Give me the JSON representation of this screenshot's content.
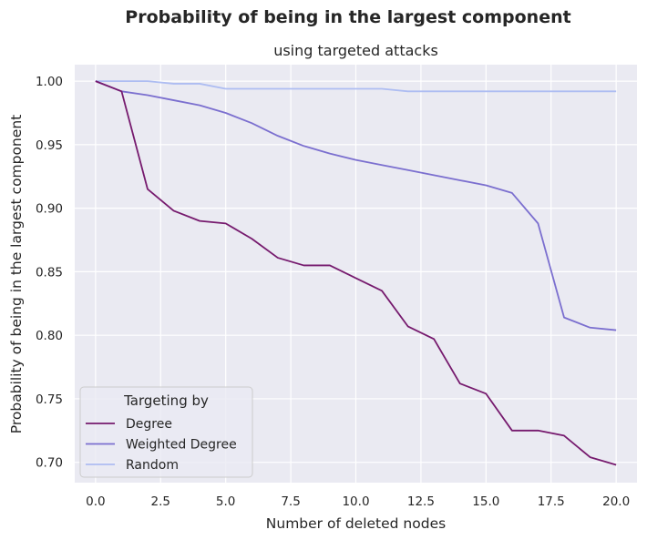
{
  "chart_data": {
    "type": "line",
    "title": "Probability of being in the largest component",
    "subtitle": "using targeted attacks",
    "xlabel": "Number of deleted nodes",
    "ylabel": "Probability of being in the largest component",
    "xlim": [
      -0.8,
      20.8
    ],
    "ylim": [
      0.684,
      1.013
    ],
    "xticks": [
      0,
      2.5,
      5,
      7.5,
      10,
      12.5,
      15,
      17.5,
      20
    ],
    "xtick_labels": [
      "0.0",
      "2.5",
      "5.0",
      "7.5",
      "10.0",
      "12.5",
      "15.0",
      "17.5",
      "20.0"
    ],
    "yticks": [
      0.7,
      0.75,
      0.8,
      0.85,
      0.9,
      0.95,
      1.0
    ],
    "ytick_labels": [
      "0.70",
      "0.75",
      "0.80",
      "0.85",
      "0.90",
      "0.95",
      "1.00"
    ],
    "grid": true,
    "legend_title": "Targeting by",
    "legend_position": "lower-left",
    "x": [
      0,
      1,
      2,
      3,
      4,
      5,
      6,
      7,
      8,
      9,
      10,
      11,
      12,
      13,
      14,
      15,
      16,
      17,
      18,
      19,
      20
    ],
    "series": [
      {
        "name": "Degree",
        "color": "#761a6e",
        "values": [
          1.0,
          0.992,
          0.915,
          0.898,
          0.89,
          0.888,
          0.876,
          0.861,
          0.855,
          0.855,
          0.845,
          0.835,
          0.807,
          0.797,
          0.762,
          0.754,
          0.725,
          0.725,
          0.721,
          0.704,
          0.698
        ]
      },
      {
        "name": "Weighted Degree",
        "color": "#7b6fcf",
        "values": [
          1.0,
          0.992,
          0.989,
          0.985,
          0.981,
          0.975,
          0.967,
          0.957,
          0.949,
          0.943,
          0.938,
          0.934,
          0.93,
          0.926,
          0.922,
          0.918,
          0.912,
          0.888,
          0.814,
          0.806,
          0.804
        ]
      },
      {
        "name": "Random",
        "color": "#aebdf2",
        "values": [
          1.0,
          1.0,
          1.0,
          0.998,
          0.998,
          0.994,
          0.994,
          0.994,
          0.994,
          0.994,
          0.994,
          0.994,
          0.992,
          0.992,
          0.992,
          0.992,
          0.992,
          0.992,
          0.992,
          0.992,
          0.992
        ]
      }
    ]
  }
}
